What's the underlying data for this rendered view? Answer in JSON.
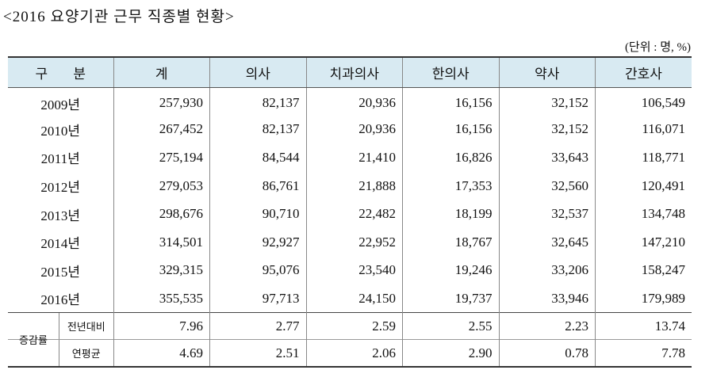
{
  "title": "<2016 요양기관 근무 직종별 현황>",
  "unit": "(단위 : 명, %)",
  "columns": [
    "구 분",
    "계",
    "의사",
    "치과의사",
    "한의사",
    "약사",
    "간호사"
  ],
  "rows": [
    {
      "year": "2009년",
      "values": [
        "257,930",
        "82,137",
        "20,936",
        "16,156",
        "32,152",
        "106,549"
      ]
    },
    {
      "year": "2010년",
      "values": [
        "267,452",
        "82,137",
        "20,936",
        "16,156",
        "32,152",
        "116,071"
      ]
    },
    {
      "year": "2011년",
      "values": [
        "275,194",
        "84,544",
        "21,410",
        "16,826",
        "33,643",
        "118,771"
      ]
    },
    {
      "year": "2012년",
      "values": [
        "279,053",
        "86,761",
        "21,888",
        "17,353",
        "32,560",
        "120,491"
      ]
    },
    {
      "year": "2013년",
      "values": [
        "298,676",
        "90,710",
        "22,482",
        "18,199",
        "32,537",
        "134,748"
      ]
    },
    {
      "year": "2014년",
      "values": [
        "314,501",
        "92,927",
        "22,952",
        "18,767",
        "32,645",
        "147,210"
      ]
    },
    {
      "year": "2015년",
      "values": [
        "329,315",
        "95,076",
        "23,540",
        "19,246",
        "33,206",
        "158,247"
      ]
    },
    {
      "year": "2016년",
      "values": [
        "355,535",
        "97,713",
        "24,150",
        "19,737",
        "33,946",
        "179,989"
      ]
    }
  ],
  "changes": {
    "group_label": "증감률",
    "rows": [
      {
        "label": "전년대비",
        "values": [
          "7.96",
          "2.77",
          "2.59",
          "2.55",
          "2.23",
          "13.74"
        ]
      },
      {
        "label": "연평균",
        "values": [
          "4.69",
          "2.51",
          "2.06",
          "2.90",
          "0.78",
          "7.78"
        ]
      }
    ]
  }
}
